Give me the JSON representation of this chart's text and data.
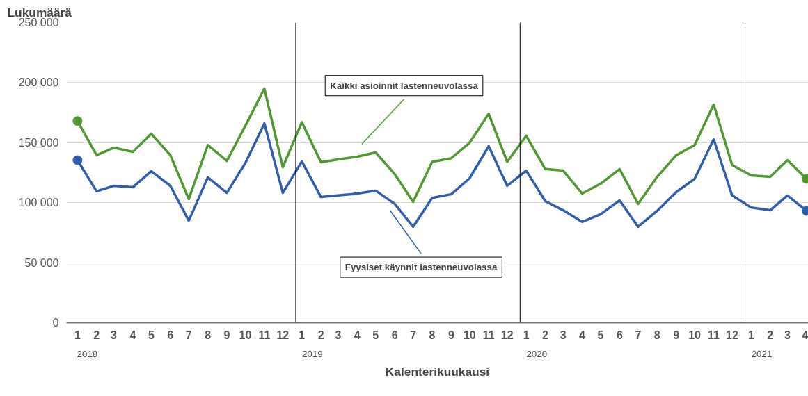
{
  "chart_data": {
    "type": "line",
    "ylabel": "Lukumäärä",
    "xlabel": "Kalenterikuukausi",
    "x": [
      "2018-01",
      "2018-02",
      "2018-03",
      "2018-04",
      "2018-05",
      "2018-06",
      "2018-07",
      "2018-08",
      "2018-09",
      "2018-10",
      "2018-11",
      "2018-12",
      "2019-01",
      "2019-02",
      "2019-03",
      "2019-04",
      "2019-05",
      "2019-06",
      "2019-07",
      "2019-08",
      "2019-09",
      "2019-10",
      "2019-11",
      "2019-12",
      "2020-01",
      "2020-02",
      "2020-03",
      "2020-04",
      "2020-05",
      "2020-06",
      "2020-07",
      "2020-08",
      "2020-09",
      "2020-10",
      "2020-11",
      "2020-12",
      "2021-01",
      "2021-02",
      "2021-03",
      "2021-04"
    ],
    "series": [
      {
        "color": "#4e9a2e",
        "values": [
          168000,
          139500,
          145800,
          142400,
          157400,
          139500,
          103000,
          148000,
          134800,
          164000,
          195000,
          129600,
          167000,
          133700,
          136000,
          138300,
          141800,
          123800,
          100700,
          134000,
          137000,
          150000,
          174000,
          134000,
          155700,
          128000,
          126700,
          107600,
          115700,
          128000,
          99000,
          121500,
          139500,
          148000,
          181700,
          131400,
          122700,
          121500,
          135400,
          119800
        ]
      },
      {
        "color": "#2e5fae",
        "values": [
          135400,
          109400,
          114000,
          112800,
          126200,
          114000,
          85000,
          121000,
          108200,
          133000,
          166000,
          108200,
          134300,
          104700,
          106000,
          107600,
          110000,
          99000,
          79900,
          104000,
          107000,
          120400,
          147000,
          114000,
          126700,
          101300,
          93700,
          84000,
          90300,
          101900,
          79900,
          93200,
          108800,
          119800,
          152800,
          106000,
          96000,
          93700,
          106000,
          93200
        ]
      },
      {
        "type": "scatter",
        "color": "#4e9a2e",
        "x": [
          "2018-01",
          "2021-04"
        ],
        "values": [
          168000,
          119800
        ]
      },
      {
        "type": "scatter",
        "color": "#2e5fae",
        "x": [
          "2018-01",
          "2021-04"
        ],
        "values": [
          135400,
          93200
        ]
      }
    ],
    "xlim": [
      "2017-12-14",
      "2021-04-04"
    ],
    "xticks": [
      {
        "value": "2018-01",
        "label": "1"
      },
      {
        "value": "2018-02",
        "label": "2"
      },
      {
        "value": "2018-03",
        "label": "3"
      },
      {
        "value": "2018-04",
        "label": "4"
      },
      {
        "value": "2018-05",
        "label": "5"
      },
      {
        "value": "2018-06",
        "label": "6"
      },
      {
        "value": "2018-07",
        "label": "7"
      },
      {
        "value": "2018-08",
        "label": "8"
      },
      {
        "value": "2018-09",
        "label": "9"
      },
      {
        "value": "2018-10",
        "label": "10"
      },
      {
        "value": "2018-11",
        "label": "11"
      },
      {
        "value": "2018-12",
        "label": "12"
      },
      {
        "value": "2019-01",
        "label": "1"
      },
      {
        "value": "2019-02",
        "label": "2"
      },
      {
        "value": "2019-03",
        "label": "3"
      },
      {
        "value": "2019-04",
        "label": "4"
      },
      {
        "value": "2019-05",
        "label": "5"
      },
      {
        "value": "2019-06",
        "label": "6"
      },
      {
        "value": "2019-07",
        "label": "7"
      },
      {
        "value": "2019-08",
        "label": "8"
      },
      {
        "value": "2019-09",
        "label": "9"
      },
      {
        "value": "2019-10",
        "label": "10"
      },
      {
        "value": "2019-11",
        "label": "11"
      },
      {
        "value": "2019-12",
        "label": "12"
      },
      {
        "value": "2020-01",
        "label": "1"
      },
      {
        "value": "2020-02",
        "label": "2"
      },
      {
        "value": "2020-03",
        "label": "3"
      },
      {
        "value": "2020-04",
        "label": "4"
      },
      {
        "value": "2020-05",
        "label": "5"
      },
      {
        "value": "2020-06",
        "label": "6"
      },
      {
        "value": "2020-07",
        "label": "7"
      },
      {
        "value": "2020-08",
        "label": "8"
      },
      {
        "value": "2020-09",
        "label": "9"
      },
      {
        "value": "2020-10",
        "label": "10"
      },
      {
        "value": "2020-11",
        "label": "11"
      },
      {
        "value": "2020-12",
        "label": "12"
      },
      {
        "value": "2021-01",
        "label": "1"
      },
      {
        "value": "2021-02",
        "label": "2"
      },
      {
        "value": "2021-03",
        "label": "3"
      },
      {
        "value": "2021-04",
        "label": "4"
      }
    ],
    "ylim": [
      0,
      250000
    ],
    "yticks": [
      {
        "value": 0,
        "label": "0"
      },
      {
        "value": 50000,
        "label": "50 000"
      },
      {
        "value": 100000,
        "label": "100 000"
      },
      {
        "value": 150000,
        "label": "150 000"
      },
      {
        "value": 200000,
        "label": "200 000"
      },
      {
        "value": 250000,
        "label": "250 000"
      }
    ],
    "grid": "y",
    "line_style": "solid",
    "ref_lines": [
      {
        "axis": "x",
        "value": "2018-12-22",
        "label": "2019",
        "color": "#000000"
      },
      {
        "axis": "x",
        "value": "2019-12-22",
        "label": "2020",
        "color": "#000000"
      },
      {
        "axis": "x",
        "value": "2020-12-22",
        "label": "2021",
        "color": "#000000"
      }
    ],
    "annotations": [
      "2018",
      "Kaikki asioinnit lastenneuvolassa",
      "Fyysiset käynnit lastenneuvolassa"
    ]
  }
}
